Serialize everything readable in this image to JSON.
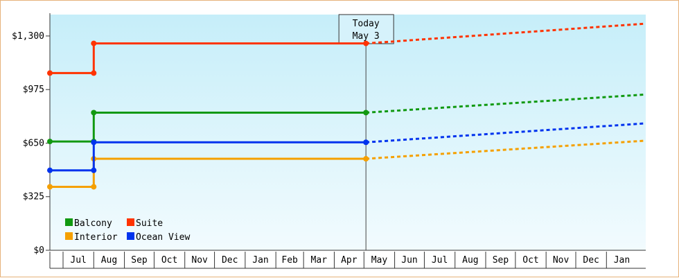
{
  "chart_data": {
    "type": "line",
    "x_months": [
      "Jul",
      "Aug",
      "Sep",
      "Oct",
      "Nov",
      "Dec",
      "Jan",
      "Feb",
      "Mar",
      "Apr",
      "May",
      "Jun",
      "Jul",
      "Aug",
      "Sep",
      "Oct",
      "Nov",
      "Dec",
      "Jan"
    ],
    "ylim": [
      0,
      1430
    ],
    "yticks": [
      0,
      325,
      650,
      975,
      1300
    ],
    "ytick_labels": [
      "$0",
      "$325",
      "$650",
      "$975",
      "$1,300"
    ],
    "today": {
      "line1": "Today",
      "line2": "May 3"
    },
    "legend_position": "bottom-left",
    "series": [
      {
        "name": "Balcony",
        "color": "#119911",
        "history": [
          [
            "Jun 1",
            660
          ],
          [
            "Aug 1",
            660
          ],
          [
            "Aug 1",
            835
          ],
          [
            "May 3",
            835
          ]
        ],
        "projection_end": [
          "Jan 31",
          945
        ]
      },
      {
        "name": "Suite",
        "color": "#ff3300",
        "history": [
          [
            "Jun 1",
            1075
          ],
          [
            "Aug 1",
            1075
          ],
          [
            "Aug 1",
            1255
          ],
          [
            "May 3",
            1255
          ]
        ],
        "projection_end": [
          "Jan 31",
          1375
        ]
      },
      {
        "name": "Interior",
        "color": "#f5a000",
        "history": [
          [
            "Jun 1",
            385
          ],
          [
            "Aug 1",
            385
          ],
          [
            "Aug 1",
            555
          ],
          [
            "May 3",
            555
          ]
        ],
        "projection_end": [
          "Jan 31",
          665
        ]
      },
      {
        "name": "Ocean View",
        "color": "#0033ee",
        "history": [
          [
            "Jun 1",
            485
          ],
          [
            "Aug 1",
            485
          ],
          [
            "Aug 1",
            655
          ],
          [
            "May 3",
            655
          ]
        ],
        "projection_end": [
          "Jan 31",
          770
        ]
      }
    ]
  }
}
